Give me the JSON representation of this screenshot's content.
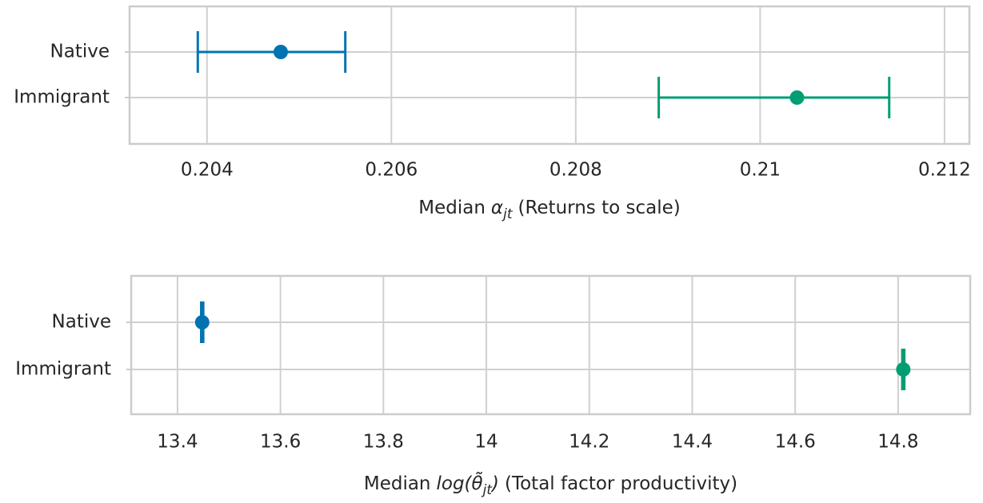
{
  "chart_data": [
    {
      "type": "errorbar",
      "categories": [
        "Native",
        "Immigrant"
      ],
      "values": [
        0.2048,
        0.2104
      ],
      "ci_low": [
        0.2039,
        0.2089
      ],
      "ci_high": [
        0.2055,
        0.2114
      ],
      "colors": [
        "#0173b2",
        "#029e73"
      ],
      "xlim": [
        0.20316,
        0.21227
      ],
      "xticks": [
        0.204,
        0.206,
        0.208,
        0.21,
        0.212
      ],
      "grid": true,
      "xlabel": [
        {
          "text": "Median",
          "style": "normal"
        },
        {
          "text": "α",
          "style": "math"
        },
        {
          "text": "jt",
          "style": "sub"
        },
        {
          "text": "(Returns to scale)",
          "style": "normal"
        }
      ]
    },
    {
      "type": "errorbar",
      "categories": [
        "Native",
        "Immigrant"
      ],
      "values": [
        13.448,
        14.81
      ],
      "ci_low": [
        13.446,
        14.808
      ],
      "ci_high": [
        13.45,
        14.812
      ],
      "colors": [
        "#0173b2",
        "#029e73"
      ],
      "xlim": [
        13.31,
        14.94
      ],
      "xticks": [
        13.4,
        13.6,
        13.8,
        14.0,
        14.2,
        14.4,
        14.6,
        14.8
      ],
      "grid": true,
      "xlabel": [
        {
          "text": "Median",
          "style": "normal"
        },
        {
          "text": "log(θ̃",
          "style": "math"
        },
        {
          "text": "jt",
          "style": "sub"
        },
        {
          "text": ")",
          "style": "math"
        },
        {
          "text": "(Total factor productivity)",
          "style": "normal"
        }
      ]
    }
  ]
}
